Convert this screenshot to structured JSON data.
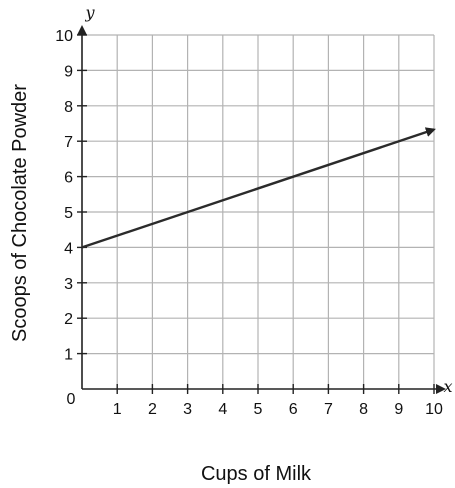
{
  "chart_data": {
    "type": "line",
    "title": "",
    "xlabel": "Cups of Milk",
    "ylabel": "Scoops of Chocolate Powder",
    "x_axis_variable": "x",
    "y_axis_variable": "y",
    "xlim": [
      0,
      10
    ],
    "ylim": [
      0,
      10
    ],
    "x_ticks": [
      1,
      2,
      3,
      4,
      5,
      6,
      7,
      8,
      9,
      10
    ],
    "y_ticks": [
      1,
      2,
      3,
      4,
      5,
      6,
      7,
      8,
      9,
      10
    ],
    "origin_label": "0",
    "grid": true,
    "line_has_arrow": true,
    "line_color": "#2b2b2b",
    "series": [
      {
        "x": [
          0,
          10
        ],
        "y": [
          4,
          7.33
        ]
      }
    ]
  }
}
